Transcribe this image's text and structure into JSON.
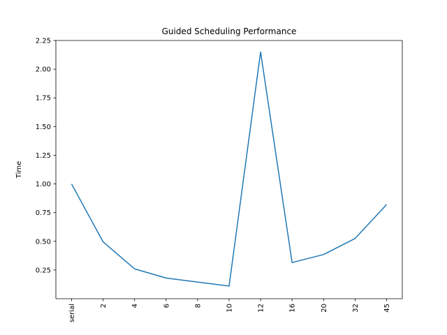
{
  "chart_data": {
    "type": "line",
    "title": "Guided Scheduling Performance",
    "xlabel": "",
    "ylabel": "Time",
    "categories": [
      "serial",
      "2",
      "4",
      "6",
      "8",
      "10",
      "12",
      "16",
      "20",
      "32",
      "45"
    ],
    "series": [
      {
        "values": [
          1.0,
          0.495,
          0.26,
          0.18,
          0.145,
          0.11,
          2.15,
          0.315,
          0.385,
          0.525,
          0.82
        ],
        "color": "#1f77b4"
      }
    ],
    "ylim": [
      0.0,
      2.25
    ],
    "yticks": [
      "0.25",
      "0.50",
      "0.75",
      "1.00",
      "1.25",
      "1.50",
      "1.75",
      "2.00",
      "2.25"
    ],
    "grid": false,
    "x_tick_rotation": "vertical"
  }
}
